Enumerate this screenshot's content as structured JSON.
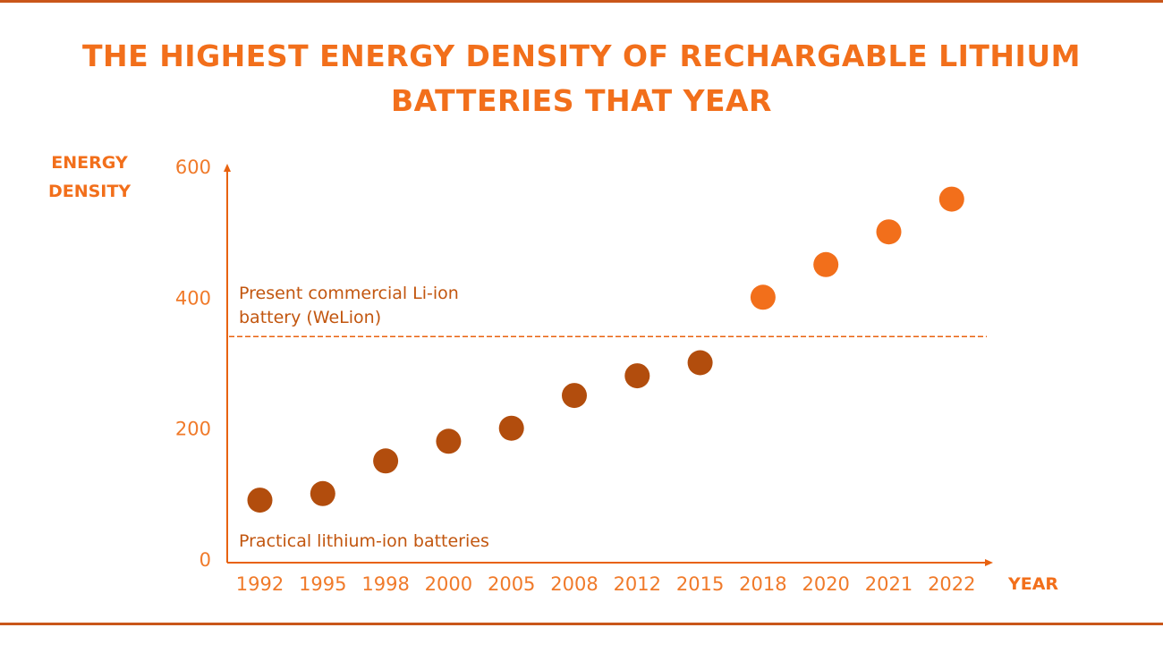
{
  "colors": {
    "accent": "#f26f1b",
    "rule": "#c9561a",
    "historic": "#b24d0d",
    "note_text": "#c2560f",
    "axis": "#e8620f",
    "tick_text": "#f07a2a"
  },
  "page": {
    "title_line1": "THE HIGHEST ENERGY DENSITY OF RECHARGABLE LITHIUM",
    "title_line2": "BATTERIES THAT YEAR"
  },
  "chart_data": {
    "type": "scatter",
    "title": "THE HIGHEST ENERGY DENSITY OF RECHARGABLE LITHIUM BATTERIES THAT YEAR",
    "ylabel_line1": "ENERGY",
    "ylabel_line2": "DENSITY",
    "xlabel": "YEAR",
    "categories": [
      "1992",
      "1995",
      "1998",
      "2000",
      "2005",
      "2008",
      "2012",
      "2015",
      "2018",
      "2020",
      "2021",
      "2022"
    ],
    "values": [
      90,
      100,
      150,
      180,
      200,
      250,
      280,
      300,
      400,
      450,
      500,
      550
    ],
    "point_colors": [
      "historic",
      "historic",
      "historic",
      "historic",
      "historic",
      "historic",
      "historic",
      "historic",
      "accent",
      "accent",
      "accent",
      "accent"
    ],
    "yticks": [
      0,
      200,
      400,
      600
    ],
    "ylim": [
      0,
      600
    ],
    "reference_line": {
      "value": 340,
      "label_line1": "Present commercial Li-ion",
      "label_line2": "battery (WeLion)"
    },
    "annotation": "Practical lithium-ion batteries",
    "grid": false,
    "legend": "none"
  }
}
